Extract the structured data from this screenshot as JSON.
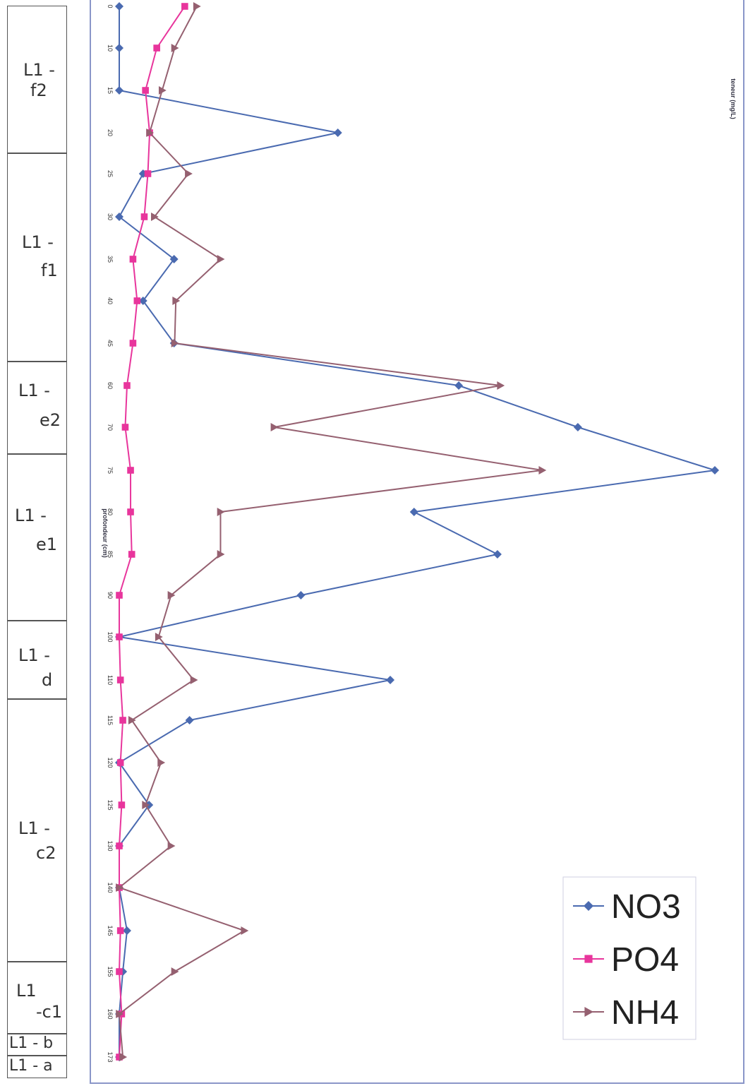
{
  "layers": [
    {
      "line1": "L1 -",
      "line2": "f2"
    },
    {
      "line1": "L1 -",
      "line2": "f1"
    },
    {
      "line1": "L1 -",
      "line2": "e2"
    },
    {
      "line1": "L1 -",
      "line2": "e1"
    },
    {
      "line1": "L1 -",
      "line2": "d"
    },
    {
      "line1": "L1 -",
      "line2": "c2"
    },
    {
      "line1": "L1",
      "line2": "-c1"
    },
    {
      "line1": "L1 - b",
      "line2": ""
    },
    {
      "line1": "L1 - a",
      "line2": ""
    }
  ],
  "chart_data": {
    "type": "line",
    "orientation": "rotated",
    "xlabel": "profondeur (cm)",
    "ylabel": "teneur (mg/L)",
    "categories": [
      "0",
      "10",
      "15",
      "20",
      "25",
      "30",
      "35",
      "40",
      "45",
      "60",
      "70",
      "75",
      "80",
      "85",
      "90",
      "100",
      "110",
      "115",
      "120",
      "125",
      "130",
      "140",
      "145",
      "155",
      "160",
      "173"
    ],
    "ylim": [
      0,
      1
    ],
    "legend_position": "bottom-right",
    "series": [
      {
        "name": "NO3",
        "color": "#4a6ab0",
        "marker": "diamond",
        "values": [
          0,
          0,
          0,
          0.367,
          0.04,
          0,
          0.092,
          0.04,
          0.092,
          0.57,
          0.77,
          1.0,
          0.495,
          0.635,
          0.305,
          0,
          0.455,
          0.118,
          0,
          0.05,
          0,
          0,
          0.013,
          0.006,
          0,
          0
        ]
      },
      {
        "name": "PO4",
        "color": "#e8359c",
        "marker": "square",
        "values": [
          0.11,
          0.063,
          0.044,
          0.051,
          0.048,
          0.042,
          0.023,
          0.03,
          0.023,
          0.013,
          0.01,
          0.019,
          0.019,
          0.021,
          0,
          0,
          0.002,
          0.006,
          0.002,
          0.004,
          0,
          0,
          0.002,
          0,
          0.004,
          0
        ]
      },
      {
        "name": "NH4",
        "color": "#956070",
        "marker": "triangle",
        "values": [
          0.13,
          0.093,
          0.072,
          0.051,
          0.116,
          0.059,
          0.17,
          0.095,
          0.093,
          0.64,
          0.26,
          0.71,
          0.17,
          0.17,
          0.087,
          0.066,
          0.125,
          0.021,
          0.07,
          0.044,
          0.087,
          0,
          0.21,
          0.093,
          0,
          0.006
        ]
      }
    ]
  }
}
